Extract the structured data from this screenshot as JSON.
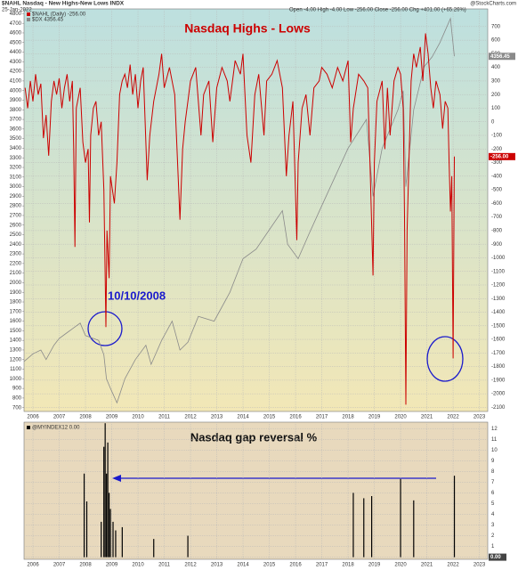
{
  "chart_data": [
    {
      "type": "line",
      "header": {
        "symbol": "$NAHL Nasdaq - New Highs-New Lows INDX",
        "date": "25-Jan-2022",
        "quote": "Open -4.00  High -4.00  Low -256.00  Close -256.00  Chg +401.00 (+65.26%)",
        "source": "@StockCharts.com"
      },
      "title": "Nasdaq Highs - Lows",
      "annotation": "10/10/2008",
      "grid": true,
      "xlim": [
        2005.66,
        2023.32
      ],
      "xticks": [
        2006,
        2007,
        2008,
        2009,
        2010,
        2011,
        2012,
        2013,
        2014,
        2015,
        2016,
        2017,
        2018,
        2019,
        2020,
        2021,
        2022,
        2023
      ],
      "ylim": [
        660,
        4850
      ],
      "yticks": [
        700,
        800,
        900,
        1000,
        1100,
        1200,
        1300,
        1400,
        1500,
        1600,
        1700,
        1800,
        1900,
        2000,
        2100,
        2200,
        2300,
        2400,
        2500,
        2600,
        2700,
        2800,
        2900,
        3000,
        3100,
        3200,
        3300,
        3400,
        3500,
        3600,
        3700,
        3800,
        3900,
        4000,
        4100,
        4200,
        4300,
        4400,
        4500,
        4600,
        4700,
        4800
      ],
      "y2lim": [
        -2130,
        830
      ],
      "y2ticks": [
        -2100,
        -2000,
        -1900,
        -1800,
        -1700,
        -1600,
        -1500,
        -1400,
        -1300,
        -1200,
        -1100,
        -1000,
        -900,
        -800,
        -700,
        -600,
        -500,
        -400,
        -300,
        -200,
        -100,
        0,
        100,
        200,
        300,
        400,
        500,
        600,
        700
      ],
      "series": [
        {
          "name": "$NAHL (Daily) -256.00",
          "color": "#cc0000",
          "axis": "y2",
          "last_label": "-256.00",
          "x": [
            2005.7,
            2005.8,
            2005.9,
            2006.0,
            2006.1,
            2006.2,
            2006.3,
            2006.4,
            2006.5,
            2006.6,
            2006.7,
            2006.8,
            2006.9,
            2007.0,
            2007.1,
            2007.2,
            2007.3,
            2007.4,
            2007.5,
            2007.55,
            2007.6,
            2007.65,
            2007.8,
            2007.9,
            2008.0,
            2008.1,
            2008.15,
            2008.2,
            2008.3,
            2008.4,
            2008.5,
            2008.6,
            2008.7,
            2008.75,
            2008.78,
            2008.82,
            2008.9,
            2008.95,
            2009.1,
            2009.2,
            2009.3,
            2009.4,
            2009.5,
            2009.6,
            2009.7,
            2009.8,
            2009.9,
            2010.0,
            2010.1,
            2010.2,
            2010.35,
            2010.45,
            2010.6,
            2010.8,
            2010.9,
            2011.0,
            2011.2,
            2011.4,
            2011.6,
            2011.7,
            2011.8,
            2011.9,
            2012.0,
            2012.2,
            2012.4,
            2012.5,
            2012.7,
            2012.85,
            2013.0,
            2013.2,
            2013.4,
            2013.5,
            2013.7,
            2013.9,
            2014.0,
            2014.15,
            2014.3,
            2014.45,
            2014.6,
            2014.8,
            2014.9,
            2015.1,
            2015.3,
            2015.5,
            2015.65,
            2015.75,
            2015.9,
            2016.05,
            2016.1,
            2016.25,
            2016.4,
            2016.55,
            2016.7,
            2016.9,
            2017.0,
            2017.2,
            2017.4,
            2017.6,
            2017.8,
            2018.0,
            2018.1,
            2018.2,
            2018.4,
            2018.6,
            2018.75,
            2018.85,
            2018.95,
            2019.0,
            2019.1,
            2019.3,
            2019.4,
            2019.5,
            2019.6,
            2019.75,
            2019.9,
            2020.0,
            2020.1,
            2020.15,
            2020.2,
            2020.25,
            2020.4,
            2020.5,
            2020.6,
            2020.75,
            2020.85,
            2020.95,
            2021.05,
            2021.15,
            2021.25,
            2021.35,
            2021.5,
            2021.6,
            2021.7,
            2021.8,
            2021.85,
            2021.9,
            2021.95,
            2022.0,
            2022.05
          ],
          "values": [
            250,
            100,
            300,
            150,
            350,
            200,
            280,
            -120,
            50,
            -250,
            150,
            300,
            200,
            320,
            100,
            250,
            350,
            150,
            300,
            -200,
            -920,
            100,
            250,
            -150,
            -300,
            -200,
            -740,
            -100,
            100,
            150,
            -100,
            0,
            -500,
            -1150,
            -1510,
            -800,
            -1150,
            -400,
            -600,
            -300,
            200,
            300,
            350,
            250,
            420,
            200,
            350,
            100,
            300,
            400,
            -430,
            -100,
            150,
            350,
            500,
            250,
            400,
            200,
            -720,
            -200,
            0,
            150,
            300,
            400,
            -100,
            200,
            300,
            -150,
            250,
            400,
            300,
            150,
            450,
            350,
            500,
            -100,
            -300,
            200,
            350,
            -100,
            300,
            350,
            450,
            250,
            -400,
            -100,
            150,
            -870,
            -300,
            100,
            200,
            -100,
            250,
            300,
            400,
            350,
            250,
            400,
            300,
            450,
            -150,
            100,
            350,
            300,
            250,
            -400,
            -1130,
            -300,
            150,
            300,
            -200,
            250,
            -100,
            300,
            400,
            350,
            100,
            -700,
            -2080,
            -800,
            300,
            500,
            400,
            550,
            300,
            650,
            500,
            250,
            100,
            300,
            200,
            -50,
            150,
            100,
            -300,
            -660,
            -400,
            -1740,
            -256
          ]
        },
        {
          "name": "$DX 4356.45",
          "color": "#8a8a8a",
          "axis": "y",
          "last_label": "4356.45",
          "x": [
            2005.66,
            2006.0,
            2006.3,
            2006.5,
            2006.8,
            2007.0,
            2007.3,
            2007.5,
            2007.8,
            2008.0,
            2008.3,
            2008.5,
            2008.7,
            2008.8,
            2008.95,
            2009.2,
            2009.5,
            2009.9,
            2010.3,
            2010.5,
            2010.9,
            2011.3,
            2011.6,
            2011.9,
            2012.3,
            2012.9,
            2013.5,
            2014.0,
            2014.5,
            2015.0,
            2015.5,
            2015.7,
            2016.1,
            2016.5,
            2017.0,
            2017.5,
            2018.0,
            2018.7,
            2018.95,
            2019.3,
            2019.9,
            2020.1,
            2020.2,
            2020.5,
            2020.9,
            2021.2,
            2021.5,
            2021.9,
            2022.05
          ],
          "values": [
            1180,
            1260,
            1300,
            1200,
            1350,
            1420,
            1480,
            1520,
            1580,
            1450,
            1420,
            1400,
            1250,
            1000,
            900,
            750,
            1000,
            1200,
            1350,
            1150,
            1400,
            1600,
            1300,
            1380,
            1650,
            1600,
            1900,
            2250,
            2350,
            2550,
            2750,
            2400,
            2250,
            2500,
            2800,
            3100,
            3400,
            3700,
            2900,
            3400,
            3800,
            4000,
            3000,
            3800,
            4250,
            4350,
            4500,
            4750,
            4356.45
          ]
        }
      ]
    },
    {
      "type": "bar",
      "title": "Nasdaq gap reversal %",
      "xlim": [
        2005.66,
        2023.32
      ],
      "xticks": [
        2006,
        2007,
        2008,
        2009,
        2010,
        2011,
        2012,
        2013,
        2014,
        2015,
        2016,
        2017,
        2018,
        2019,
        2020,
        2021,
        2022,
        2023
      ],
      "ylim": [
        -0.2,
        12.6
      ],
      "yticks": [
        0,
        1,
        2,
        3,
        4,
        5,
        6,
        7,
        8,
        9,
        10,
        11,
        12
      ],
      "grid": true,
      "series": [
        {
          "name": "@MYINDEX12 0.00",
          "color": "#000000",
          "last_label": "0.00",
          "x": [
            2007.95,
            2008.05,
            2008.6,
            2008.7,
            2008.75,
            2008.8,
            2008.85,
            2008.9,
            2008.95,
            2009.05,
            2009.15,
            2009.4,
            2010.6,
            2011.9,
            2018.2,
            2018.6,
            2018.9,
            2020.0,
            2020.5,
            2022.05
          ],
          "values": [
            7.8,
            5.2,
            3.3,
            10.3,
            12.5,
            7.8,
            10.7,
            6,
            4.5,
            3.3,
            2.5,
            2.8,
            1.7,
            2,
            6,
            5.5,
            5.7,
            7.3,
            5.3,
            7.6
          ]
        }
      ]
    }
  ]
}
